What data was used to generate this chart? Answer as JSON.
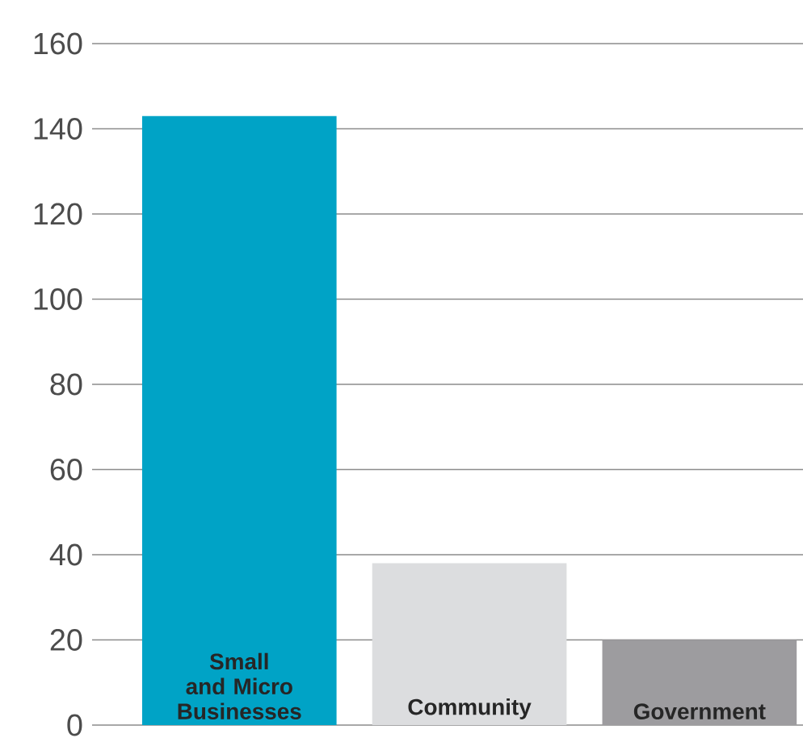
{
  "chart_data": {
    "type": "bar",
    "categories": [
      "Small and Micro Businesses",
      "Community",
      "Government"
    ],
    "values": [
      143,
      38,
      20
    ],
    "colors": [
      "#00a3c6",
      "#dcdddf",
      "#9d9c9f"
    ],
    "ylim": [
      0,
      160
    ],
    "yticks": [
      0,
      20,
      40,
      60,
      80,
      100,
      120,
      140,
      160
    ],
    "grid": "y"
  }
}
